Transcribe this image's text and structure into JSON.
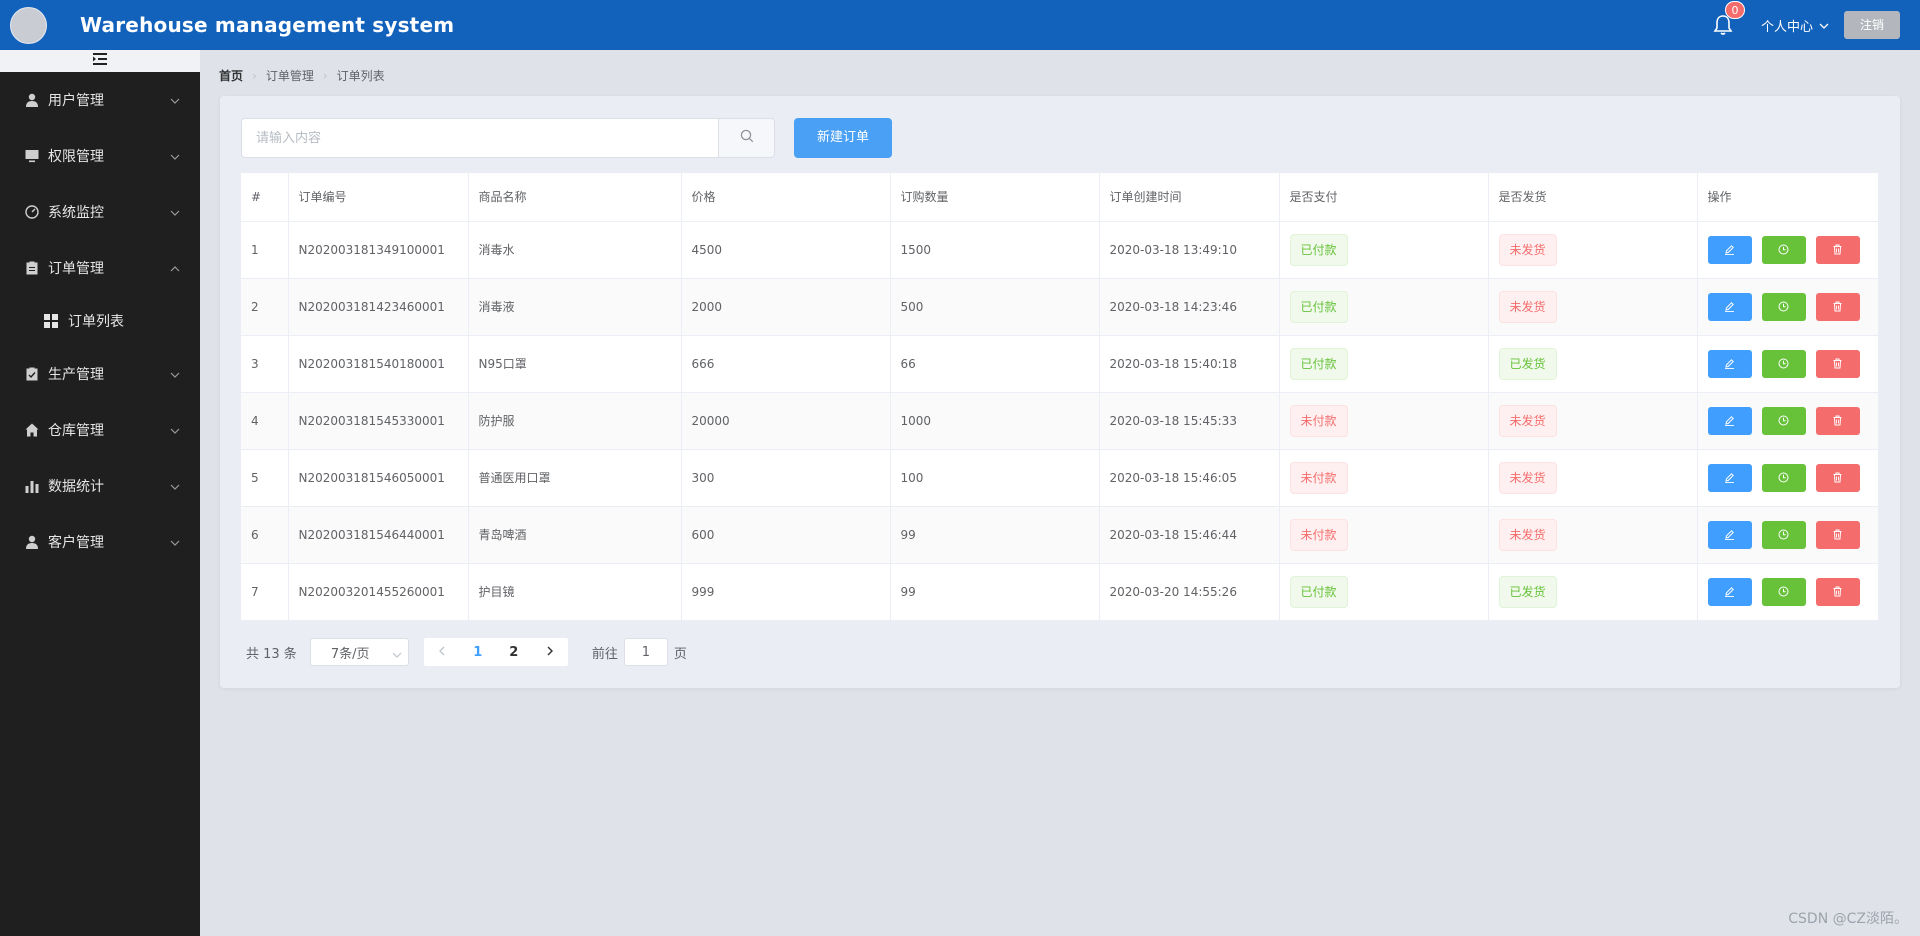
{
  "header": {
    "title": "Warehouse management system",
    "notification_count": "0",
    "user_center_label": "个人中心",
    "logout_label": "注销",
    "accent_color": "#1262bc"
  },
  "sidebar": {
    "items": [
      {
        "label": "用户管理",
        "icon": "user-icon",
        "expanded": false
      },
      {
        "label": "权限管理",
        "icon": "monitor-icon",
        "expanded": false
      },
      {
        "label": "系统监控",
        "icon": "gauge-icon",
        "expanded": false
      },
      {
        "label": "订单管理",
        "icon": "clipboard-icon",
        "expanded": true
      },
      {
        "label": "生产管理",
        "icon": "checklist-icon",
        "expanded": false
      },
      {
        "label": "仓库管理",
        "icon": "home-icon",
        "expanded": false
      },
      {
        "label": "数据统计",
        "icon": "bar-chart-icon",
        "expanded": false
      },
      {
        "label": "客户管理",
        "icon": "person-icon",
        "expanded": false
      }
    ],
    "subitems": [
      {
        "label": "订单列表",
        "icon": "grid-icon"
      }
    ]
  },
  "breadcrumb": [
    "首页",
    "订单管理",
    "订单列表"
  ],
  "search": {
    "placeholder": "请输入内容",
    "value": ""
  },
  "toolbar": {
    "new_order_label": "新建订单"
  },
  "table": {
    "columns": [
      "#",
      "订单编号",
      "商品名称",
      "价格",
      "订购数量",
      "订单创建时间",
      "是否支付",
      "是否发货",
      "操作"
    ],
    "rows": [
      {
        "index": "1",
        "order_no": "N202003181349100001",
        "product": "消毒水",
        "price": "4500",
        "qty": "1500",
        "created": "2020-03-18 13:49:10",
        "paid": "已付款",
        "paid_ok": true,
        "shipped": "未发货",
        "shipped_ok": false
      },
      {
        "index": "2",
        "order_no": "N202003181423460001",
        "product": "消毒液",
        "price": "2000",
        "qty": "500",
        "created": "2020-03-18 14:23:46",
        "paid": "已付款",
        "paid_ok": true,
        "shipped": "未发货",
        "shipped_ok": false
      },
      {
        "index": "3",
        "order_no": "N202003181540180001",
        "product": "N95口罩",
        "price": "666",
        "qty": "66",
        "created": "2020-03-18 15:40:18",
        "paid": "已付款",
        "paid_ok": true,
        "shipped": "已发货",
        "shipped_ok": true
      },
      {
        "index": "4",
        "order_no": "N202003181545330001",
        "product": "防护服",
        "price": "20000",
        "qty": "1000",
        "created": "2020-03-18 15:45:33",
        "paid": "未付款",
        "paid_ok": false,
        "shipped": "未发货",
        "shipped_ok": false
      },
      {
        "index": "5",
        "order_no": "N202003181546050001",
        "product": "普通医用口罩",
        "price": "300",
        "qty": "100",
        "created": "2020-03-18 15:46:05",
        "paid": "未付款",
        "paid_ok": false,
        "shipped": "未发货",
        "shipped_ok": false
      },
      {
        "index": "6",
        "order_no": "N202003181546440001",
        "product": "青岛啤酒",
        "price": "600",
        "qty": "99",
        "created": "2020-03-18 15:46:44",
        "paid": "未付款",
        "paid_ok": false,
        "shipped": "未发货",
        "shipped_ok": false
      },
      {
        "index": "7",
        "order_no": "N202003201455260001",
        "product": "护目镜",
        "price": "999",
        "qty": "99",
        "created": "2020-03-20 14:55:26",
        "paid": "已付款",
        "paid_ok": true,
        "shipped": "已发货",
        "shipped_ok": true
      }
    ]
  },
  "pagination": {
    "total_text": "共 13 条",
    "page_size": "7条/页",
    "pages": [
      "1",
      "2"
    ],
    "current_page": "1",
    "goto_prefix": "前往",
    "goto_value": "1",
    "goto_suffix": "页"
  },
  "watermark": "CSDN @CZ淡陌。"
}
